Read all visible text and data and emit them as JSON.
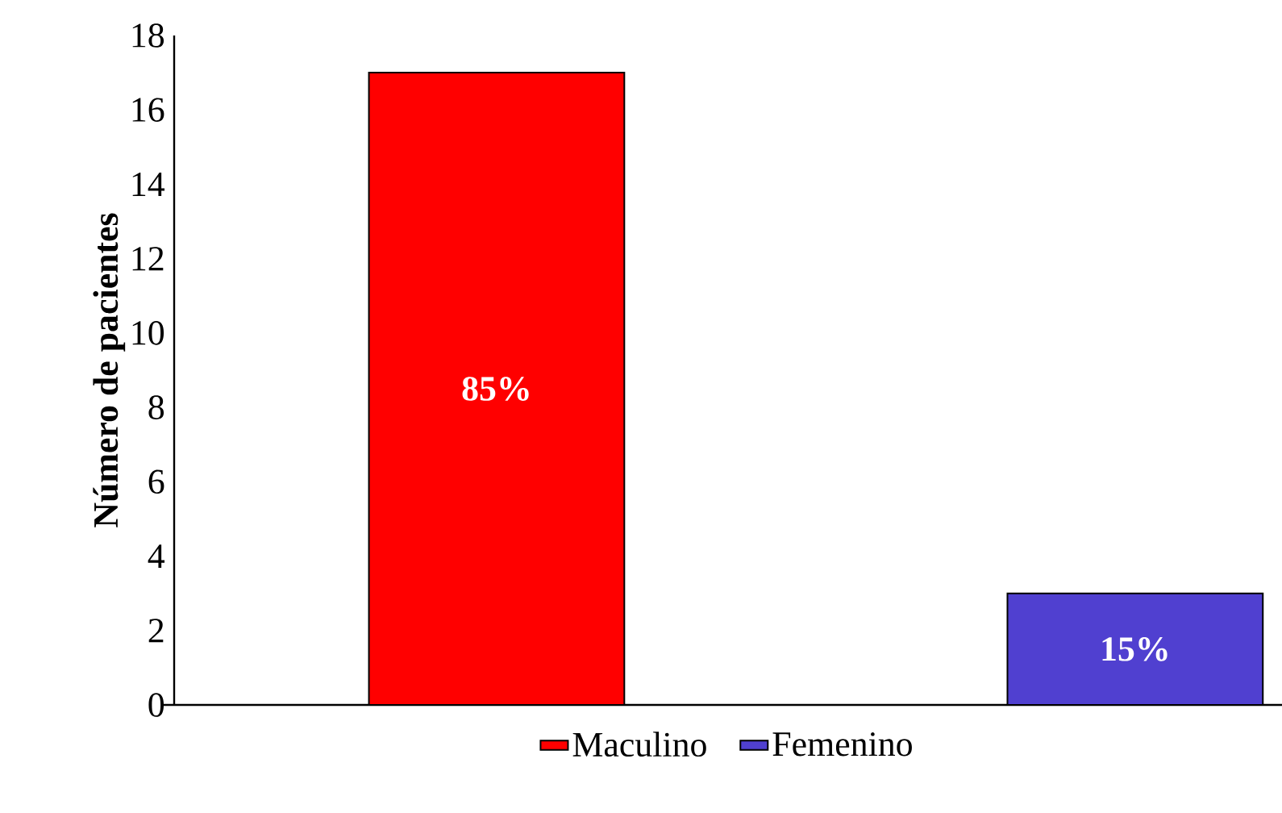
{
  "chart_data": {
    "type": "bar",
    "ylabel": "Número de pacientes",
    "categories": [
      null,
      null
    ],
    "series": [
      {
        "name": "Maculino",
        "color": "#ff0000",
        "values": [
          17,
          null
        ]
      },
      {
        "name": "Femenino",
        "color": "#5040d0",
        "values": [
          null,
          3
        ]
      }
    ],
    "annotations": [
      "85%",
      "15%"
    ],
    "ylim": [
      0,
      18
    ],
    "yticks": [
      0,
      2,
      4,
      6,
      8,
      10,
      12,
      14,
      16,
      18
    ],
    "grid": false,
    "legend": "bottom"
  }
}
